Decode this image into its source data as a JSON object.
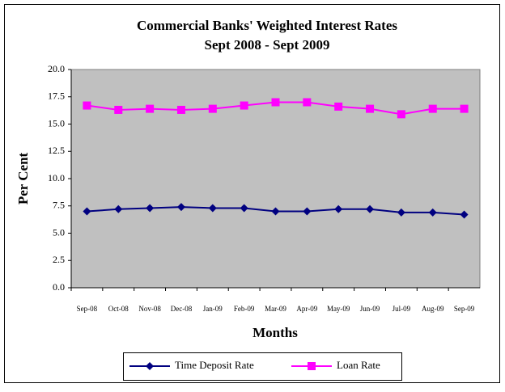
{
  "chart_data": {
    "type": "line",
    "title": "Commercial Banks' Weighted  Interest Rates",
    "subtitle": "Sept 2008 - Sept 2009",
    "x_label": "Months",
    "y_label": "Per Cent",
    "categories": [
      "Sep-08",
      "Oct-08",
      "Nov-08",
      "Dec-08",
      "Jan-09",
      "Feb-09",
      "Mar-09",
      "Apr-09",
      "May-09",
      "Jun-09",
      "Jul-09",
      "Aug-09",
      "Sep-09"
    ],
    "series": [
      {
        "name": "Time Deposit Rate",
        "color": "#000080",
        "marker": "diamond",
        "values": [
          7.0,
          7.2,
          7.3,
          7.4,
          7.3,
          7.3,
          7.0,
          7.0,
          7.2,
          7.2,
          6.9,
          6.9,
          6.7
        ]
      },
      {
        "name": "Loan Rate",
        "color": "#ff00ff",
        "marker": "square",
        "values": [
          16.7,
          16.3,
          16.4,
          16.3,
          16.4,
          16.7,
          17.0,
          17.0,
          16.6,
          16.4,
          15.9,
          16.4,
          16.4
        ]
      }
    ],
    "ylim": [
      0,
      20
    ],
    "yticks": [
      {
        "value": 0,
        "label": "0.0"
      },
      2.5,
      {
        "value": 5,
        "label": "5.0"
      },
      7.5,
      {
        "value": 10,
        "label": "10.0"
      },
      12.5,
      {
        "value": 15,
        "label": "15.0"
      },
      17.5,
      {
        "value": 20,
        "label": "20.0"
      }
    ],
    "grid": false,
    "plot_background": "#c0c0c0",
    "legend": "bottom"
  }
}
